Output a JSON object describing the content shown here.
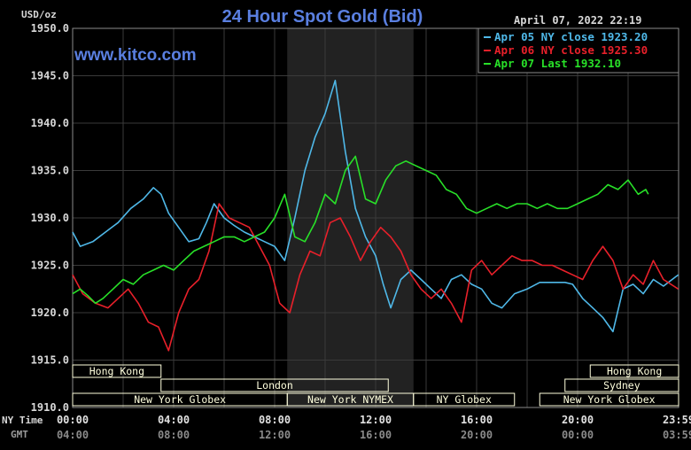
{
  "header": {
    "unit_label": "USD/oz",
    "timestamp": "April 07, 2022 22:19",
    "watermark": "www.kitco.com"
  },
  "footer": {
    "ny_time_label": "NY Time",
    "gmt_label": "GMT"
  },
  "sessions": [
    {
      "label": "Hong Kong",
      "row": 0,
      "start_h": 0,
      "end_h": 3.5
    },
    {
      "label": "Hong Kong",
      "row": 0,
      "start_h": 20.5,
      "end_h": 24
    },
    {
      "label": "London",
      "row": 1,
      "start_h": 3.5,
      "end_h": 12.5
    },
    {
      "label": "Sydney",
      "row": 1,
      "start_h": 19.5,
      "end_h": 24
    },
    {
      "label": "New York Globex",
      "row": 2,
      "start_h": 0,
      "end_h": 8.5
    },
    {
      "label": "New York NYMEX",
      "row": 2,
      "start_h": 8.5,
      "end_h": 13.5
    },
    {
      "label": "NY Globex",
      "row": 2,
      "start_h": 13.5,
      "end_h": 17.5
    },
    {
      "label": "New York Globex",
      "row": 2,
      "start_h": 18.5,
      "end_h": 24
    }
  ],
  "colors": {
    "background": "#000000",
    "grid": "#3a3a3a",
    "title": "#5a7fe0",
    "apr05": "#4fb8e8",
    "apr06": "#e8202a",
    "apr07": "#28e028",
    "session_box": "#ffffdd",
    "nymex_shade": "#222222"
  },
  "chart_data": {
    "type": "line",
    "title": "24 Hour Spot Gold (Bid)",
    "xlabel": "",
    "ylabel": "USD/oz",
    "ylim": [
      1910,
      1950
    ],
    "xlim": [
      0,
      24
    ],
    "grid": true,
    "legend_position": "top-right",
    "x_ticks_ny": [
      "00:00",
      "04:00",
      "08:00",
      "12:00",
      "16:00",
      "20:00",
      "23:59"
    ],
    "x_ticks_gmt": [
      "04:00",
      "08:00",
      "12:00",
      "16:00",
      "20:00",
      "00:00",
      "03:59"
    ],
    "y_ticks": [
      "1910.0",
      "1915.0",
      "1920.0",
      "1925.0",
      "1930.0",
      "1935.0",
      "1940.0",
      "1945.0",
      "1950.0"
    ],
    "shaded_range_hours": [
      8.5,
      13.5
    ],
    "series": [
      {
        "name": "Apr 05 NY close 1923.20",
        "color": "#4fb8e8",
        "x": [
          0,
          0.3,
          0.8,
          1.3,
          1.8,
          2.3,
          2.8,
          3.2,
          3.5,
          3.8,
          4.2,
          4.6,
          5.0,
          5.3,
          5.6,
          6.0,
          6.4,
          6.8,
          7.2,
          7.6,
          8.0,
          8.4,
          8.8,
          9.2,
          9.6,
          10.0,
          10.4,
          10.8,
          11.2,
          11.6,
          12.0,
          12.3,
          12.6,
          13.0,
          13.4,
          13.8,
          14.2,
          14.6,
          15.0,
          15.4,
          15.8,
          16.2,
          16.6,
          17.0,
          17.5,
          18.0,
          18.5,
          19.0,
          19.5,
          19.8,
          20.2,
          20.6,
          21.0,
          21.4,
          21.8,
          22.2,
          22.6,
          23.0,
          23.4,
          23.99
        ],
        "y": [
          1928.5,
          1927.0,
          1927.5,
          1928.5,
          1929.5,
          1931.0,
          1932.0,
          1933.2,
          1932.5,
          1930.5,
          1929.0,
          1927.5,
          1927.8,
          1929.5,
          1931.5,
          1930.0,
          1929.2,
          1928.5,
          1928.0,
          1927.5,
          1927.0,
          1925.5,
          1930.0,
          1935.0,
          1938.5,
          1941.0,
          1944.5,
          1937.0,
          1931.0,
          1928.0,
          1926.0,
          1923.0,
          1920.5,
          1923.5,
          1924.5,
          1923.5,
          1922.5,
          1921.5,
          1923.5,
          1924.0,
          1923.0,
          1922.5,
          1921.0,
          1920.5,
          1922.0,
          1922.5,
          1923.2,
          1923.2,
          1923.2,
          1923.0,
          1921.5,
          1920.5,
          1919.5,
          1918.0,
          1922.5,
          1923.0,
          1922.0,
          1923.5,
          1922.8,
          1924.0
        ]
      },
      {
        "name": "Apr 06 NY close 1925.30",
        "color": "#e8202a",
        "x": [
          0,
          0.4,
          0.9,
          1.4,
          1.8,
          2.2,
          2.6,
          3.0,
          3.4,
          3.8,
          4.2,
          4.6,
          5.0,
          5.4,
          5.8,
          6.2,
          6.6,
          7.0,
          7.4,
          7.8,
          8.2,
          8.6,
          9.0,
          9.4,
          9.8,
          10.2,
          10.6,
          11.0,
          11.4,
          11.8,
          12.2,
          12.6,
          13.0,
          13.4,
          13.8,
          14.2,
          14.6,
          15.0,
          15.4,
          15.8,
          16.2,
          16.6,
          17.0,
          17.4,
          17.8,
          18.2,
          18.6,
          19.0,
          19.4,
          19.8,
          20.2,
          20.6,
          21.0,
          21.4,
          21.8,
          22.2,
          22.6,
          23.0,
          23.4,
          23.99
        ],
        "y": [
          1924.0,
          1922.0,
          1921.0,
          1920.5,
          1921.5,
          1922.5,
          1921.0,
          1919.0,
          1918.5,
          1916.0,
          1920.0,
          1922.5,
          1923.5,
          1926.5,
          1931.5,
          1930.0,
          1929.5,
          1929.0,
          1927.0,
          1925.0,
          1921.0,
          1920.0,
          1924.0,
          1926.5,
          1926.0,
          1929.5,
          1930.0,
          1928.0,
          1925.5,
          1927.5,
          1929.0,
          1928.0,
          1926.5,
          1924.0,
          1922.5,
          1921.5,
          1922.5,
          1921.0,
          1919.0,
          1924.5,
          1925.5,
          1924.0,
          1925.0,
          1926.0,
          1925.5,
          1925.5,
          1925.0,
          1925.0,
          1924.5,
          1924.0,
          1923.5,
          1925.5,
          1927.0,
          1925.5,
          1922.5,
          1924.0,
          1923.0,
          1925.5,
          1923.5,
          1922.5
        ]
      },
      {
        "name": "Apr 07 Last 1932.10",
        "color": "#28e028",
        "x": [
          0,
          0.3,
          0.6,
          0.9,
          1.2,
          1.6,
          2.0,
          2.4,
          2.8,
          3.2,
          3.6,
          4.0,
          4.4,
          4.8,
          5.2,
          5.6,
          6.0,
          6.4,
          6.8,
          7.2,
          7.6,
          8.0,
          8.4,
          8.8,
          9.2,
          9.6,
          10.0,
          10.4,
          10.8,
          11.2,
          11.6,
          12.0,
          12.4,
          12.8,
          13.2,
          13.6,
          14.0,
          14.4,
          14.8,
          15.2,
          15.6,
          16.0,
          16.4,
          16.8,
          17.2,
          17.6,
          18.0,
          18.4,
          18.8,
          19.2,
          19.6,
          20.0,
          20.4,
          20.8,
          21.2,
          21.6,
          22.0,
          22.4,
          22.7,
          22.8
        ],
        "y": [
          1922.0,
          1922.5,
          1921.8,
          1921.0,
          1921.5,
          1922.5,
          1923.5,
          1923.0,
          1924.0,
          1924.5,
          1925.0,
          1924.5,
          1925.5,
          1926.5,
          1927.0,
          1927.5,
          1928.0,
          1928.0,
          1927.5,
          1928.0,
          1928.5,
          1930.0,
          1932.5,
          1928.0,
          1927.5,
          1929.5,
          1932.5,
          1931.5,
          1935.0,
          1936.5,
          1932.0,
          1931.5,
          1934.0,
          1935.5,
          1936.0,
          1935.5,
          1935.0,
          1934.5,
          1933.0,
          1932.5,
          1931.0,
          1930.5,
          1931.0,
          1931.5,
          1931.0,
          1931.5,
          1931.5,
          1931.0,
          1931.5,
          1931.0,
          1931.0,
          1931.5,
          1932.0,
          1932.5,
          1933.5,
          1933.0,
          1934.0,
          1932.5,
          1933.0,
          1932.5
        ]
      }
    ]
  }
}
